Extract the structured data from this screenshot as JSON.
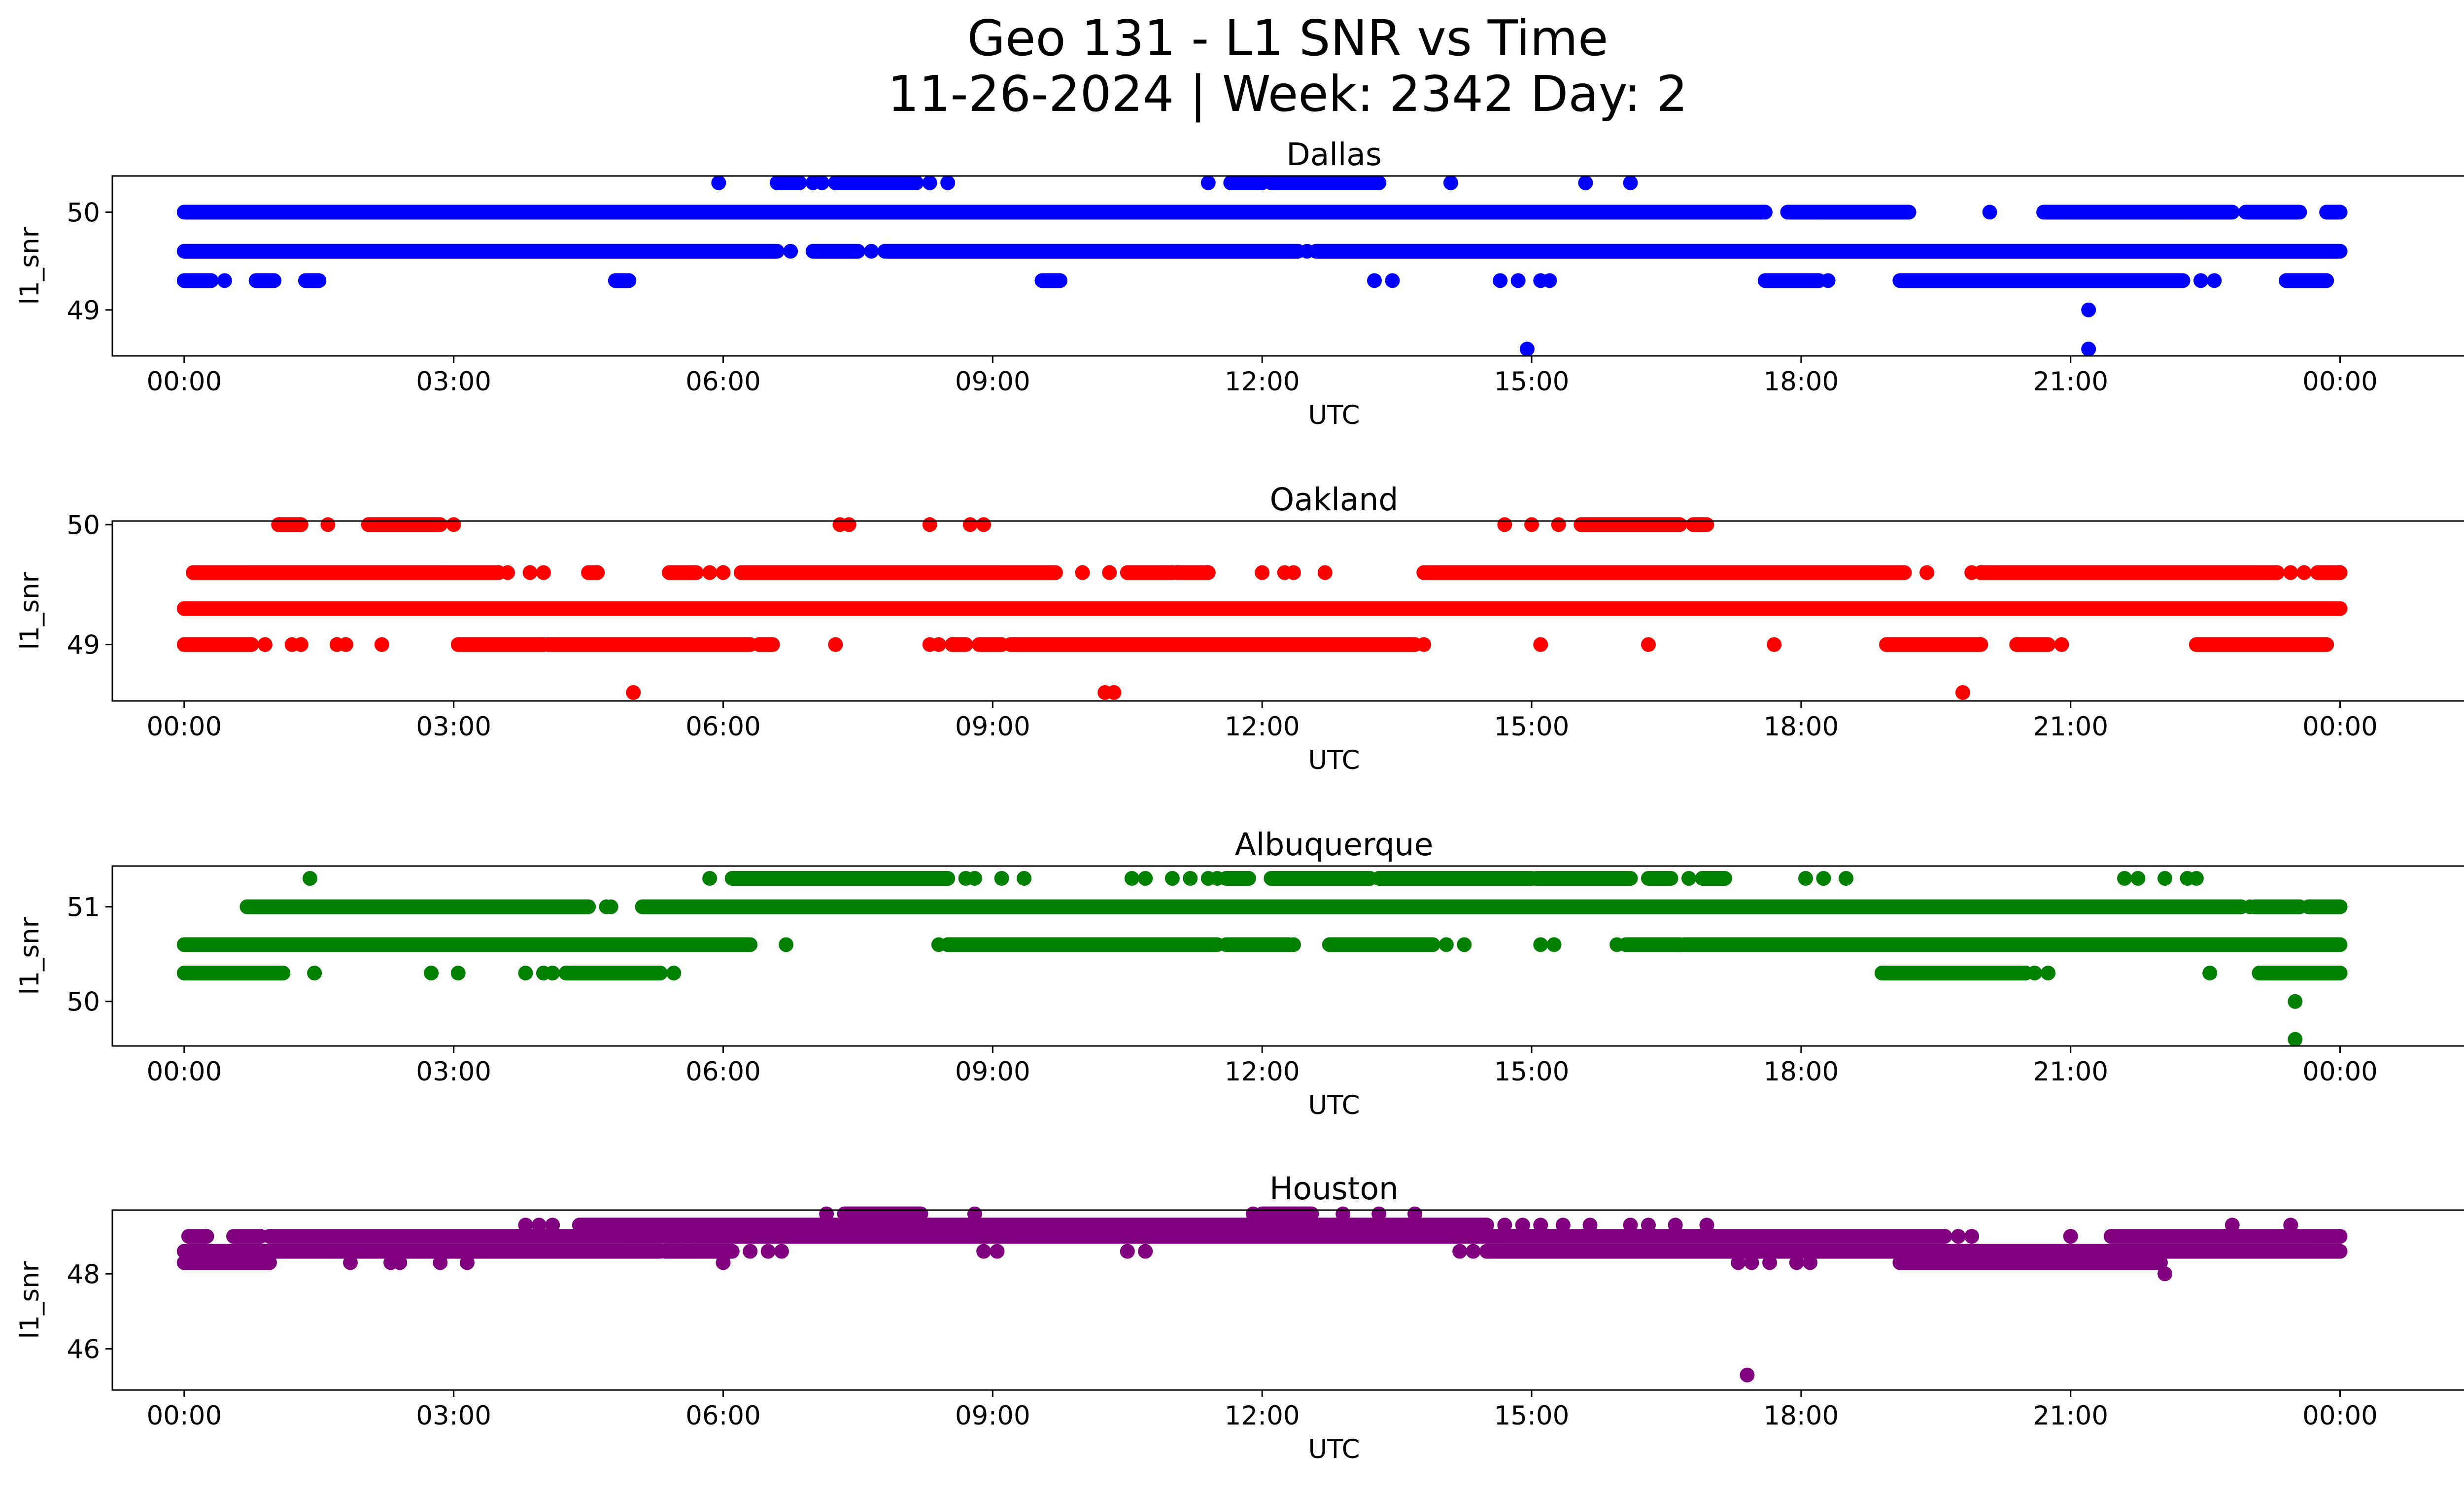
{
  "title_line1": "Geo 131 - L1 SNR vs Time",
  "title_line2": "11-26-2024 | Week: 2342 Day: 2",
  "chart_data": [
    {
      "type": "scatter",
      "title": "Dallas",
      "color": "#0000ff",
      "xlabel": "UTC",
      "ylabel": "l1_snr",
      "xlim": [
        -0.8,
        26.4
      ],
      "xticks": [
        0,
        3,
        6,
        9,
        12,
        15,
        18,
        21,
        24
      ],
      "xtick_labels": [
        "00:00",
        "03:00",
        "06:00",
        "09:00",
        "12:00",
        "15:00",
        "18:00",
        "21:00",
        "00:00"
      ],
      "ylim": [
        48.53,
        50.37
      ],
      "yticks": [
        49,
        50
      ],
      "ytick_labels": [
        "49",
        "50"
      ],
      "series": [
        {
          "name": "level-50.0",
          "y": 50.0,
          "segments": [
            [
              0.0,
              17.6
            ],
            [
              17.85,
              19.2
            ],
            [
              20.7,
              22.8
            ],
            [
              22.95,
              23.55
            ],
            [
              23.85,
              24.0
            ]
          ],
          "points": [
            20.1
          ]
        },
        {
          "name": "level-49.6",
          "y": 49.6,
          "segments": [
            [
              0.0,
              6.6
            ],
            [
              7.0,
              7.5
            ],
            [
              7.8,
              12.4
            ],
            [
              12.6,
              24.0
            ]
          ],
          "points": [
            6.75,
            7.65,
            12.5
          ]
        },
        {
          "name": "level-49.3",
          "y": 49.3,
          "segments": [
            [
              0.0,
              0.3
            ],
            [
              0.8,
              1.0
            ],
            [
              1.35,
              1.5
            ],
            [
              4.8,
              4.95
            ],
            [
              9.55,
              9.75
            ],
            [
              17.6,
              18.2
            ],
            [
              19.1,
              22.25
            ],
            [
              23.4,
              23.85
            ]
          ],
          "points": [
            0.45,
            13.25,
            13.45,
            14.65,
            14.85,
            15.1,
            15.2,
            18.3,
            22.45,
            22.6
          ]
        },
        {
          "name": "level-50.3",
          "y": 50.3,
          "segments": [
            [
              6.6,
              6.85
            ],
            [
              7.25,
              8.15
            ],
            [
              11.65,
              12.0
            ],
            [
              12.1,
              13.3
            ]
          ],
          "points": [
            5.95,
            7.0,
            7.1,
            8.3,
            8.5,
            11.4,
            14.1,
            15.6,
            16.1
          ]
        },
        {
          "name": "level-49.0",
          "y": 49.0,
          "segments": [],
          "points": [
            21.2
          ]
        },
        {
          "name": "level-48.6",
          "y": 48.6,
          "segments": [],
          "points": [
            14.95,
            21.2
          ]
        }
      ]
    },
    {
      "type": "scatter",
      "title": "Oakland",
      "color": "#ff0000",
      "xlabel": "UTC",
      "ylabel": "l1_snr",
      "xlim": [
        -0.8,
        26.4
      ],
      "xticks": [
        0,
        3,
        6,
        9,
        12,
        15,
        18,
        21,
        24
      ],
      "xtick_labels": [
        "00:00",
        "03:00",
        "06:00",
        "09:00",
        "12:00",
        "15:00",
        "18:00",
        "21:00",
        "00:00"
      ],
      "ylim": [
        48.53,
        50.03
      ],
      "yticks": [
        49,
        50
      ],
      "ytick_labels": [
        "49",
        "50"
      ],
      "series": [
        {
          "name": "level-49.3",
          "y": 49.3,
          "segments": [
            [
              0.0,
              24.0
            ]
          ],
          "points": []
        },
        {
          "name": "level-49.6",
          "y": 49.6,
          "segments": [
            [
              0.1,
              3.5
            ],
            [
              4.5,
              4.6
            ],
            [
              5.4,
              5.7
            ],
            [
              6.2,
              9.7
            ],
            [
              10.5,
              11.0
            ],
            [
              11.05,
              11.4
            ],
            [
              13.8,
              19.15
            ],
            [
              20.0,
              23.3
            ],
            [
              23.75,
              24.0
            ]
          ],
          "points": [
            3.6,
            3.85,
            4.0,
            5.85,
            6.0,
            10.0,
            10.3,
            12.0,
            12.25,
            12.35,
            12.7,
            19.4,
            19.9,
            23.45,
            23.6
          ]
        },
        {
          "name": "level-49.0",
          "y": 49.0,
          "segments": [
            [
              0.0,
              0.75
            ],
            [
              3.05,
              4.0
            ],
            [
              4.05,
              6.3
            ],
            [
              6.4,
              6.55
            ],
            [
              8.55,
              8.7
            ],
            [
              8.85,
              9.1
            ],
            [
              9.2,
              13.7
            ],
            [
              18.95,
              20.0
            ],
            [
              20.4,
              20.75
            ],
            [
              22.4,
              23.85
            ]
          ],
          "points": [
            0.9,
            1.2,
            1.3,
            1.7,
            1.8,
            2.2,
            7.25,
            8.3,
            8.4,
            13.8,
            15.1,
            16.3,
            17.7,
            20.9
          ]
        },
        {
          "name": "level-50.0",
          "y": 50.0,
          "segments": [
            [
              1.05,
              1.3
            ],
            [
              2.05,
              2.85
            ],
            [
              15.55,
              16.65
            ],
            [
              16.8,
              16.95
            ]
          ],
          "points": [
            1.6,
            3.0,
            7.3,
            7.4,
            8.3,
            8.75,
            8.9,
            14.7,
            15.0,
            15.3,
            16.9
          ]
        },
        {
          "name": "level-48.6",
          "y": 48.6,
          "segments": [],
          "points": [
            5.0,
            10.25,
            10.35,
            19.8
          ]
        }
      ]
    },
    {
      "type": "scatter",
      "title": "Albuquerque",
      "color": "#008000",
      "xlabel": "UTC",
      "ylabel": "l1_snr",
      "xlim": [
        -0.8,
        26.4
      ],
      "xticks": [
        0,
        3,
        6,
        9,
        12,
        15,
        18,
        21,
        24
      ],
      "xtick_labels": [
        "00:00",
        "03:00",
        "06:00",
        "09:00",
        "12:00",
        "15:00",
        "18:00",
        "21:00",
        "00:00"
      ],
      "ylim": [
        49.53,
        51.43
      ],
      "yticks": [
        50,
        51
      ],
      "ytick_labels": [
        "50",
        "51"
      ],
      "series": [
        {
          "name": "level-51.0",
          "y": 51.0,
          "segments": [
            [
              0.7,
              4.5
            ],
            [
              5.1,
              22.9
            ],
            [
              23.05,
              23.55
            ],
            [
              23.65,
              24.0
            ]
          ],
          "points": [
            4.7,
            4.75,
            23.0
          ]
        },
        {
          "name": "level-50.6",
          "y": 50.6,
          "segments": [
            [
              0.0,
              6.3
            ],
            [
              8.5,
              11.5
            ],
            [
              11.6,
              12.3
            ],
            [
              12.75,
              13.9
            ],
            [
              16.05,
              16.65
            ],
            [
              16.7,
              24.0
            ]
          ],
          "points": [
            6.7,
            8.4,
            12.35,
            14.05,
            14.25,
            15.1,
            15.25,
            15.95
          ]
        },
        {
          "name": "level-50.3",
          "y": 50.3,
          "segments": [
            [
              0.0,
              1.1
            ],
            [
              4.25,
              5.3
            ],
            [
              18.9,
              20.5
            ],
            [
              23.1,
              24.0
            ]
          ],
          "points": [
            1.45,
            2.75,
            3.05,
            3.8,
            4.0,
            4.1,
            5.45,
            20.6,
            20.75,
            22.55
          ]
        },
        {
          "name": "level-51.3",
          "y": 51.3,
          "segments": [
            [
              6.1,
              8.5
            ],
            [
              11.6,
              11.85
            ],
            [
              12.1,
              13.2
            ],
            [
              13.3,
              15.0
            ],
            [
              15.05,
              16.1
            ],
            [
              16.3,
              16.55
            ],
            [
              16.9,
              17.15
            ]
          ],
          "points": [
            1.4,
            5.85,
            8.7,
            8.8,
            9.1,
            9.35,
            10.55,
            10.7,
            11.0,
            11.2,
            11.4,
            11.5,
            16.75,
            18.05,
            18.25,
            18.5,
            21.6,
            21.75,
            22.05,
            22.3,
            22.4
          ]
        },
        {
          "name": "level-50.0",
          "y": 50.0,
          "segments": [],
          "points": [
            23.5
          ]
        },
        {
          "name": "level-49.6",
          "y": 49.6,
          "segments": [],
          "points": [
            23.5
          ]
        }
      ]
    },
    {
      "type": "scatter",
      "title": "Houston",
      "color": "#800080",
      "xlabel": "UTC",
      "ylabel": "l1_snr",
      "xlim": [
        -0.8,
        26.4
      ],
      "xticks": [
        0,
        3,
        6,
        9,
        12,
        15,
        18,
        21,
        24
      ],
      "xtick_labels": [
        "00:00",
        "03:00",
        "06:00",
        "09:00",
        "12:00",
        "15:00",
        "18:00",
        "21:00",
        "00:00"
      ],
      "ylim": [
        44.9,
        49.7
      ],
      "yticks": [
        46,
        48
      ],
      "ytick_labels": [
        "46",
        "48"
      ],
      "series": [
        {
          "name": "level-48.3",
          "y": 48.3,
          "segments": [
            [
              0.0,
              0.95
            ],
            [
              19.1,
              22.0
            ]
          ],
          "points": [
            1.85,
            2.3,
            2.4,
            2.85,
            3.15,
            6.0,
            17.3,
            17.45,
            17.65,
            17.95,
            18.1
          ]
        },
        {
          "name": "level-48.6",
          "y": 48.6,
          "segments": [
            [
              0.0,
              5.3
            ],
            [
              5.35,
              6.1
            ],
            [
              14.5,
              24.0
            ]
          ],
          "points": [
            5.5,
            5.6,
            6.3,
            6.5,
            6.65,
            8.9,
            9.05,
            10.5,
            10.7,
            14.2,
            14.35
          ]
        },
        {
          "name": "level-49.0",
          "y": 49.0,
          "segments": [
            [
              0.05,
              0.25
            ],
            [
              0.55,
              0.85
            ],
            [
              0.95,
              19.6
            ],
            [
              21.45,
              24.0
            ]
          ],
          "points": [
            19.75,
            19.9,
            21.0
          ]
        },
        {
          "name": "level-49.3",
          "y": 49.3,
          "segments": [
            [
              4.4,
              14.5
            ]
          ],
          "points": [
            3.8,
            3.95,
            4.1,
            14.7,
            14.9,
            15.1,
            15.35,
            15.65,
            16.1,
            16.3,
            16.6,
            16.95,
            22.8,
            23.45
          ]
        },
        {
          "name": "level-49.6",
          "y": 49.6,
          "segments": [
            [
              7.35,
              8.2
            ],
            [
              12.0,
              12.55
            ]
          ],
          "points": [
            7.15,
            8.8,
            11.9,
            12.9,
            13.3,
            13.7
          ]
        },
        {
          "name": "level-48.0",
          "y": 48.0,
          "segments": [],
          "points": [
            22.05
          ]
        },
        {
          "name": "level-45.3",
          "y": 45.3,
          "segments": [],
          "points": [
            17.4
          ]
        }
      ]
    }
  ]
}
